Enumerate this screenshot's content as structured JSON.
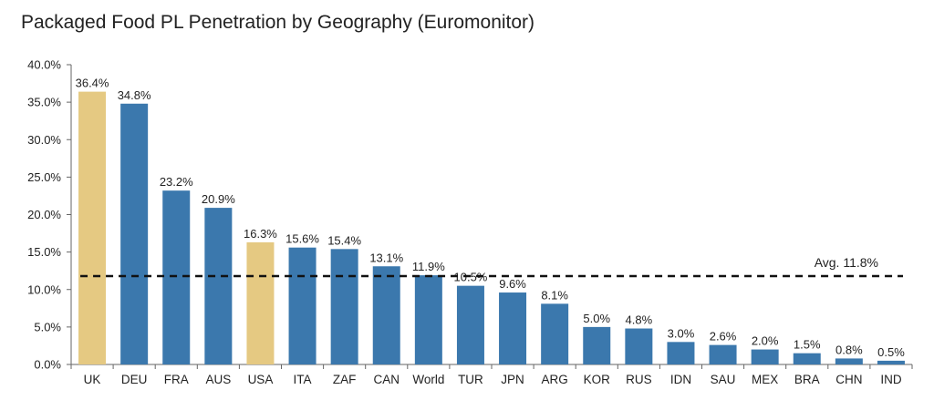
{
  "title": "Packaged Food PL Penetration by Geography (Euromonitor)",
  "chart_data": {
    "type": "bar",
    "title": "Packaged Food PL Penetration by Geography (Euromonitor)",
    "categories": [
      "UK",
      "DEU",
      "FRA",
      "AUS",
      "USA",
      "ITA",
      "ZAF",
      "CAN",
      "World",
      "TUR",
      "JPN",
      "ARG",
      "KOR",
      "RUS",
      "IDN",
      "SAU",
      "MEX",
      "BRA",
      "CHN",
      "IND"
    ],
    "values": [
      36.4,
      34.8,
      23.2,
      20.9,
      16.3,
      15.6,
      15.4,
      13.1,
      11.9,
      10.5,
      9.6,
      8.1,
      5.0,
      4.8,
      3.0,
      2.6,
      2.0,
      1.5,
      0.8,
      0.5
    ],
    "value_labels": [
      "36.4%",
      "34.8%",
      "23.2%",
      "20.9%",
      "16.3%",
      "15.6%",
      "15.4%",
      "13.1%",
      "11.9%",
      "10.5%",
      "9.6%",
      "8.1%",
      "5.0%",
      "4.8%",
      "3.0%",
      "2.6%",
      "2.0%",
      "1.5%",
      "0.8%",
      "0.5%"
    ],
    "highlighted": [
      "UK",
      "USA"
    ],
    "ylim": [
      0,
      40
    ],
    "yticks": [
      0,
      5,
      10,
      15,
      20,
      25,
      30,
      35,
      40
    ],
    "ytick_labels": [
      "0.0%",
      "5.0%",
      "10.0%",
      "15.0%",
      "20.0%",
      "25.0%",
      "30.0%",
      "35.0%",
      "40.0%"
    ],
    "average": {
      "value": 11.8,
      "label": "Avg. 11.8%"
    },
    "xlabel": "",
    "ylabel": "",
    "grid": false,
    "colors": {
      "bar": "#3b78ad",
      "highlight": "#e5c982",
      "average_line": "#111111",
      "text": "#222222",
      "axis": "#666666"
    }
  }
}
